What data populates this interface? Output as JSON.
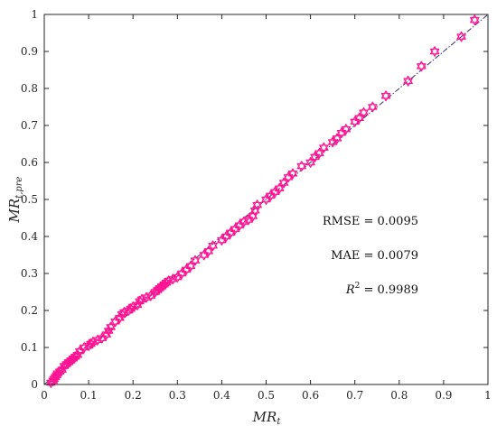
{
  "chart_data": {
    "type": "scatter",
    "title": "",
    "xlabel": {
      "main": "MR",
      "sub": "t"
    },
    "ylabel": {
      "main": "MR",
      "sub": "t,pre"
    },
    "xlim": [
      0,
      1
    ],
    "ylim": [
      0,
      1
    ],
    "xticks": [
      "0",
      "0.1",
      "0.2",
      "0.3",
      "0.4",
      "0.5",
      "0.6",
      "0.7",
      "0.8",
      "0.9",
      "1"
    ],
    "yticks": [
      "0",
      "0.1",
      "0.2",
      "0.3",
      "0.4",
      "0.5",
      "0.6",
      "0.7",
      "0.8",
      "0.9",
      "1"
    ],
    "grid": false,
    "marker": "hexagram",
    "colors": {
      "points": "#ff1493",
      "reference": "#3c2a78",
      "axes": "#262626"
    },
    "reference_line": {
      "style": "dash-dot",
      "x": [
        0,
        1
      ],
      "y": [
        0,
        1
      ]
    },
    "annotations": [
      {
        "label": "RMSE",
        "value": "= 0.0095"
      },
      {
        "label": "MAE",
        "value": "= 0.0079"
      },
      {
        "label": "R",
        "sup": "2",
        "value": "= 0.9989"
      }
    ],
    "points": [
      [
        0.015,
        0.005
      ],
      [
        0.02,
        0.01
      ],
      [
        0.022,
        0.015
      ],
      [
        0.025,
        0.02
      ],
      [
        0.028,
        0.025
      ],
      [
        0.03,
        0.03
      ],
      [
        0.035,
        0.035
      ],
      [
        0.04,
        0.04
      ],
      [
        0.045,
        0.05
      ],
      [
        0.05,
        0.055
      ],
      [
        0.055,
        0.06
      ],
      [
        0.06,
        0.065
      ],
      [
        0.065,
        0.07
      ],
      [
        0.07,
        0.075
      ],
      [
        0.075,
        0.08
      ],
      [
        0.08,
        0.09
      ],
      [
        0.09,
        0.1
      ],
      [
        0.1,
        0.105
      ],
      [
        0.105,
        0.11
      ],
      [
        0.11,
        0.115
      ],
      [
        0.12,
        0.12
      ],
      [
        0.13,
        0.125
      ],
      [
        0.14,
        0.135
      ],
      [
        0.145,
        0.145
      ],
      [
        0.15,
        0.155
      ],
      [
        0.16,
        0.17
      ],
      [
        0.17,
        0.18
      ],
      [
        0.175,
        0.19
      ],
      [
        0.18,
        0.195
      ],
      [
        0.19,
        0.2
      ],
      [
        0.195,
        0.205
      ],
      [
        0.2,
        0.21
      ],
      [
        0.21,
        0.215
      ],
      [
        0.215,
        0.225
      ],
      [
        0.22,
        0.23
      ],
      [
        0.23,
        0.235
      ],
      [
        0.24,
        0.24
      ],
      [
        0.25,
        0.25
      ],
      [
        0.255,
        0.255
      ],
      [
        0.26,
        0.26
      ],
      [
        0.265,
        0.265
      ],
      [
        0.27,
        0.27
      ],
      [
        0.275,
        0.275
      ],
      [
        0.28,
        0.28
      ],
      [
        0.29,
        0.285
      ],
      [
        0.3,
        0.29
      ],
      [
        0.31,
        0.3
      ],
      [
        0.32,
        0.31
      ],
      [
        0.33,
        0.32
      ],
      [
        0.34,
        0.335
      ],
      [
        0.36,
        0.35
      ],
      [
        0.37,
        0.36
      ],
      [
        0.38,
        0.375
      ],
      [
        0.4,
        0.39
      ],
      [
        0.41,
        0.4
      ],
      [
        0.42,
        0.41
      ],
      [
        0.43,
        0.42
      ],
      [
        0.44,
        0.43
      ],
      [
        0.45,
        0.44
      ],
      [
        0.46,
        0.445
      ],
      [
        0.47,
        0.455
      ],
      [
        0.475,
        0.47
      ],
      [
        0.48,
        0.485
      ],
      [
        0.5,
        0.5
      ],
      [
        0.51,
        0.51
      ],
      [
        0.52,
        0.52
      ],
      [
        0.53,
        0.53
      ],
      [
        0.54,
        0.545
      ],
      [
        0.55,
        0.56
      ],
      [
        0.56,
        0.57
      ],
      [
        0.58,
        0.59
      ],
      [
        0.6,
        0.6
      ],
      [
        0.61,
        0.615
      ],
      [
        0.62,
        0.625
      ],
      [
        0.63,
        0.64
      ],
      [
        0.65,
        0.655
      ],
      [
        0.66,
        0.665
      ],
      [
        0.67,
        0.68
      ],
      [
        0.68,
        0.69
      ],
      [
        0.7,
        0.71
      ],
      [
        0.71,
        0.72
      ],
      [
        0.72,
        0.735
      ],
      [
        0.74,
        0.75
      ],
      [
        0.77,
        0.78
      ],
      [
        0.82,
        0.82
      ],
      [
        0.85,
        0.86
      ],
      [
        0.88,
        0.9
      ],
      [
        0.94,
        0.94
      ],
      [
        0.97,
        0.985
      ]
    ]
  }
}
